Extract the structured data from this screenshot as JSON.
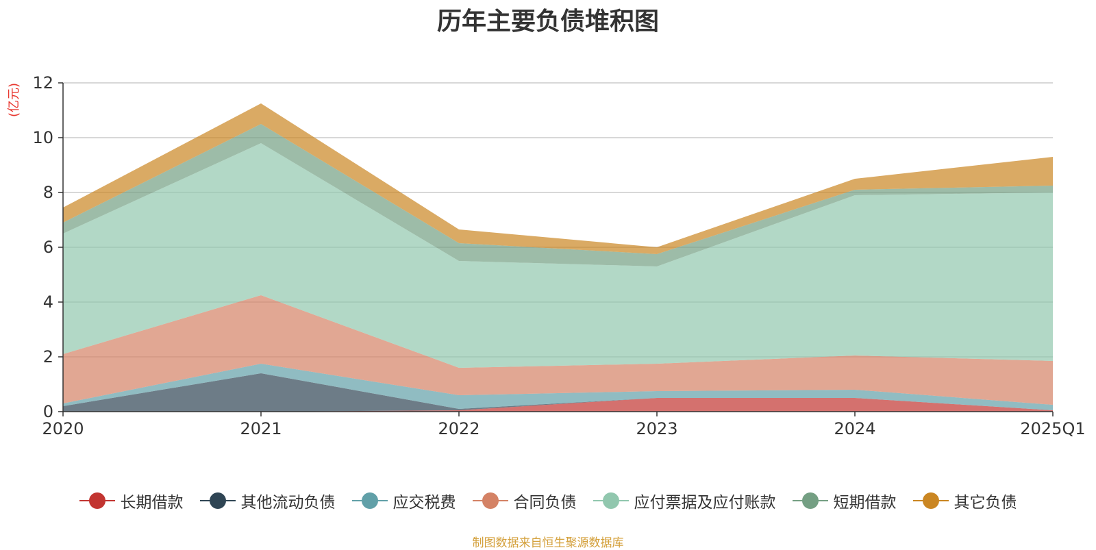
{
  "chart_data": {
    "type": "area",
    "stacked": true,
    "title": "历年主要负债堆积图",
    "ylabel": "(亿元)",
    "xlabel": "",
    "categories": [
      "2020",
      "2021",
      "2022",
      "2023",
      "2024",
      "2025Q1"
    ],
    "ylim": [
      0,
      12
    ],
    "yticks": [
      0,
      2,
      4,
      6,
      8,
      10,
      12
    ],
    "grid": true,
    "legend_position": "bottom",
    "series": [
      {
        "name": "长期借款",
        "color": "#c23531",
        "values": [
          0,
          0,
          0.05,
          0.5,
          0.5,
          0.05
        ]
      },
      {
        "name": "其他流动负债",
        "color": "#2f4554",
        "values": [
          0.2,
          1.4,
          0.05,
          0,
          0,
          0
        ]
      },
      {
        "name": "应交税费",
        "color": "#61a0a8",
        "values": [
          0.1,
          0.35,
          0.5,
          0.25,
          0.3,
          0.2
        ]
      },
      {
        "name": "合同负债",
        "color": "#d48265",
        "values": [
          1.8,
          2.5,
          1.0,
          1.0,
          1.25,
          1.6
        ]
      },
      {
        "name": "应付票据及应付账款",
        "color": "#91c7ae",
        "values": [
          4.4,
          5.55,
          3.9,
          3.55,
          5.85,
          6.15
        ]
      },
      {
        "name": "短期借款",
        "color": "#749f83",
        "values": [
          0.4,
          0.7,
          0.65,
          0.45,
          0.2,
          0.25
        ]
      },
      {
        "name": "其它负债",
        "color": "#ca8622",
        "values": [
          0.55,
          0.75,
          0.5,
          0.25,
          0.4,
          1.05
        ]
      }
    ]
  },
  "source_note": "制图数据来自恒生聚源数据库"
}
